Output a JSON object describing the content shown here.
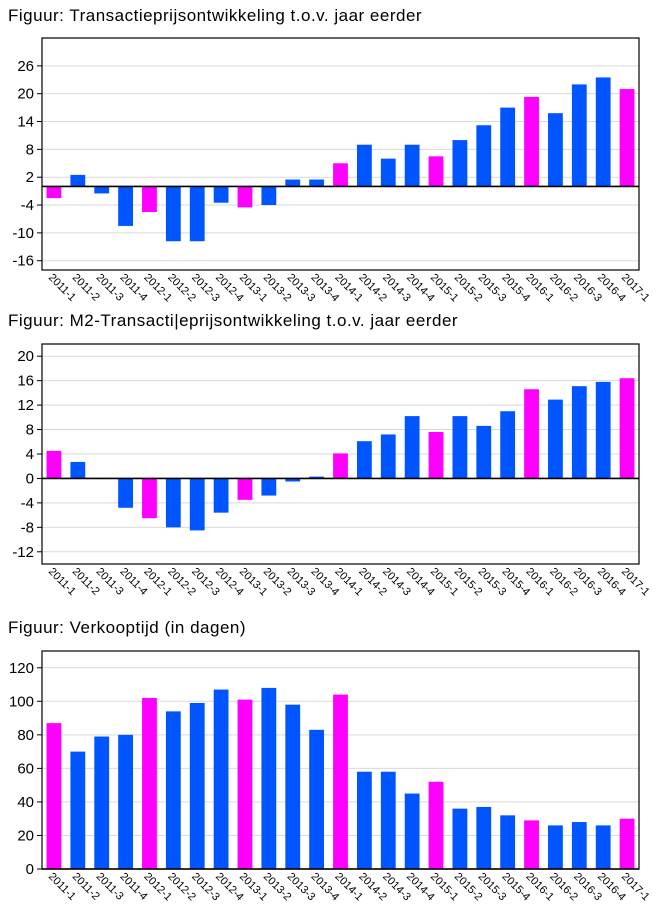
{
  "colors": {
    "blue": "#0055ff",
    "magenta": "#ff00ff",
    "axis": "#000000",
    "grid": "#d9d9d9"
  },
  "chart_data": [
    {
      "type": "bar",
      "title": "Figuur: Transactieprijsontwikkeling t.o.v. jaar eerder",
      "xlabel": "",
      "ylabel": "",
      "ylim": [
        -18,
        32
      ],
      "yticks": [
        26,
        20,
        14,
        8,
        2,
        -4,
        -10,
        -16
      ],
      "grid": true,
      "categories": [
        "2011-1",
        "2011-2",
        "2011-3",
        "2011-4",
        "2012-1",
        "2012-2",
        "2012-3",
        "2012-4",
        "2013-1",
        "2013-2",
        "2013-3",
        "2013-4",
        "2014-1",
        "2014-2",
        "2014-3",
        "2014-4",
        "2015-1",
        "2015-2",
        "2015-3",
        "2015-4",
        "2016-1",
        "2016-2",
        "2016-3",
        "2016-4",
        "2017-1"
      ],
      "values": [
        -2.5,
        2.5,
        -1.5,
        -8.5,
        -5.5,
        -11.8,
        -11.8,
        -3.5,
        -4.5,
        -4,
        1.5,
        1.5,
        5,
        9,
        6,
        9,
        6.5,
        10,
        13.2,
        17,
        19.3,
        15.8,
        22,
        23.5,
        21
      ],
      "highlight": [
        0,
        4,
        8,
        12,
        16,
        20,
        24
      ]
    },
    {
      "type": "bar",
      "title": "Figuur: M2-Transacti|eprijsontwikkeling t.o.v. jaar eerder",
      "xlabel": "",
      "ylabel": "",
      "ylim": [
        -14,
        22
      ],
      "yticks": [
        20,
        16,
        12,
        8,
        4,
        0,
        -4,
        -8,
        -12
      ],
      "grid": true,
      "categories": [
        "2011-1",
        "2011-2",
        "2011-3",
        "2011-4",
        "2012-1",
        "2012-2",
        "2012-3",
        "2012-4",
        "2013-1",
        "2013-2",
        "2013-3",
        "2013-4",
        "2014-1",
        "2014-2",
        "2014-3",
        "2014-4",
        "2015-1",
        "2015-2",
        "2015-3",
        "2015-4",
        "2016-1",
        "2016-2",
        "2016-3",
        "2016-4",
        "2017-1"
      ],
      "values": [
        4.5,
        2.7,
        0,
        -4.8,
        -6.5,
        -8,
        -8.5,
        -5.6,
        -3.5,
        -2.8,
        -0.5,
        0.3,
        4.1,
        6.1,
        7.2,
        10.2,
        7.6,
        10.2,
        8.6,
        11,
        14.6,
        12.9,
        15.1,
        15.8,
        16.4
      ],
      "highlight": [
        0,
        4,
        8,
        12,
        16,
        20,
        24
      ]
    },
    {
      "type": "bar",
      "title": "Figuur: Verkooptijd (in dagen)",
      "xlabel": "",
      "ylabel": "",
      "ylim": [
        0,
        130
      ],
      "yticks": [
        120,
        100,
        80,
        60,
        40,
        20,
        0
      ],
      "grid": true,
      "categories": [
        "2011-1",
        "2011-2",
        "2011-3",
        "2011-4",
        "2012-1",
        "2012-2",
        "2012-3",
        "2012-4",
        "2013-1",
        "2013-2",
        "2013-3",
        "2013-4",
        "2014-1",
        "2014-2",
        "2014-3",
        "2014-4",
        "2015-1",
        "2015-2",
        "2015-3",
        "2015-4",
        "2016-1",
        "2016-2",
        "2016-3",
        "2016-4",
        "2017-1"
      ],
      "values": [
        87,
        70,
        79,
        80,
        102,
        94,
        99,
        107,
        101,
        108,
        98,
        83,
        104,
        58,
        58,
        45,
        52,
        36,
        37,
        32,
        29,
        26,
        28,
        26,
        30
      ],
      "highlight": [
        0,
        4,
        8,
        12,
        16,
        20,
        24
      ]
    }
  ]
}
